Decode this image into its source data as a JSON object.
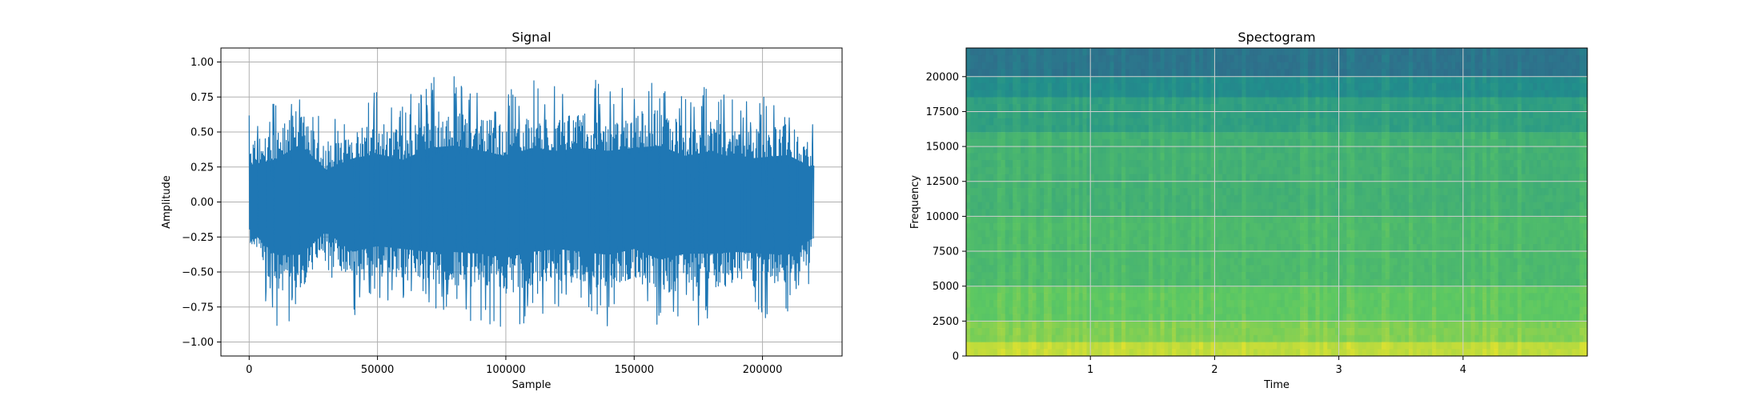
{
  "chart_data": [
    {
      "type": "line",
      "title": "Signal",
      "xlabel": "Sample",
      "ylabel": "Amplitude",
      "xlim": [
        -11000,
        231000
      ],
      "ylim": [
        -1.1,
        1.1
      ],
      "xticks": [
        0,
        50000,
        100000,
        150000,
        200000
      ],
      "xtick_labels": [
        "0",
        "50000",
        "100000",
        "150000",
        "200000"
      ],
      "yticks": [
        -1.0,
        -0.75,
        -0.5,
        -0.25,
        0.0,
        0.25,
        0.5,
        0.75,
        1.0
      ],
      "ytick_labels": [
        "−1.00",
        "−0.75",
        "−0.50",
        "−0.25",
        "0.00",
        "0.25",
        "0.50",
        "0.75",
        "1.00"
      ],
      "grid": true,
      "color": "#1f77b4",
      "series": [
        {
          "x": [
            0,
            10000,
            20000,
            30000,
            40000,
            50000,
            60000,
            70000,
            80000,
            90000,
            100000,
            110000,
            120000,
            130000,
            140000,
            150000,
            160000,
            170000,
            180000,
            190000,
            200000,
            210000,
            220000
          ],
          "y_max": [
            0.63,
            0.72,
            0.98,
            0.55,
            0.74,
            0.82,
            0.72,
            0.92,
            0.96,
            0.88,
            0.78,
            0.92,
            0.87,
            0.92,
            0.87,
            0.92,
            0.96,
            0.78,
            0.87,
            0.72,
            0.76,
            0.8,
            0.57
          ],
          "y_min": [
            -0.45,
            -0.9,
            -0.9,
            -0.5,
            -0.85,
            -0.75,
            -0.8,
            -0.85,
            -0.85,
            -0.88,
            -0.95,
            -0.85,
            -0.8,
            -0.85,
            -0.9,
            -0.8,
            -0.98,
            -0.88,
            -0.88,
            -0.85,
            -0.88,
            -0.9,
            -0.6
          ]
        }
      ]
    },
    {
      "type": "heatmap",
      "title": "Spectogram",
      "xlabel": "Time",
      "ylabel": "Frequency",
      "xlim": [
        0.0,
        5.0
      ],
      "ylim": [
        0,
        22050
      ],
      "xticks": [
        1,
        2,
        3,
        4
      ],
      "xtick_labels": [
        "1",
        "2",
        "3",
        "4"
      ],
      "yticks": [
        0,
        2500,
        5000,
        7500,
        10000,
        12500,
        15000,
        17500,
        20000
      ],
      "ytick_labels": [
        "0",
        "2500",
        "5000",
        "7500",
        "10000",
        "12500",
        "15000",
        "17500",
        "20000"
      ],
      "grid": true,
      "colormap": "viridis",
      "frequency_bands": [
        {
          "from": 0,
          "to": 1000,
          "level": 0.9
        },
        {
          "from": 1000,
          "to": 2500,
          "level": 0.8
        },
        {
          "from": 2500,
          "to": 5000,
          "level": 0.74
        },
        {
          "from": 5000,
          "to": 10000,
          "level": 0.68
        },
        {
          "from": 10000,
          "to": 16000,
          "level": 0.64
        },
        {
          "from": 16000,
          "to": 18500,
          "level": 0.56
        },
        {
          "from": 18500,
          "to": 20000,
          "level": 0.48
        },
        {
          "from": 20000,
          "to": 22050,
          "level": 0.38
        }
      ]
    }
  ]
}
